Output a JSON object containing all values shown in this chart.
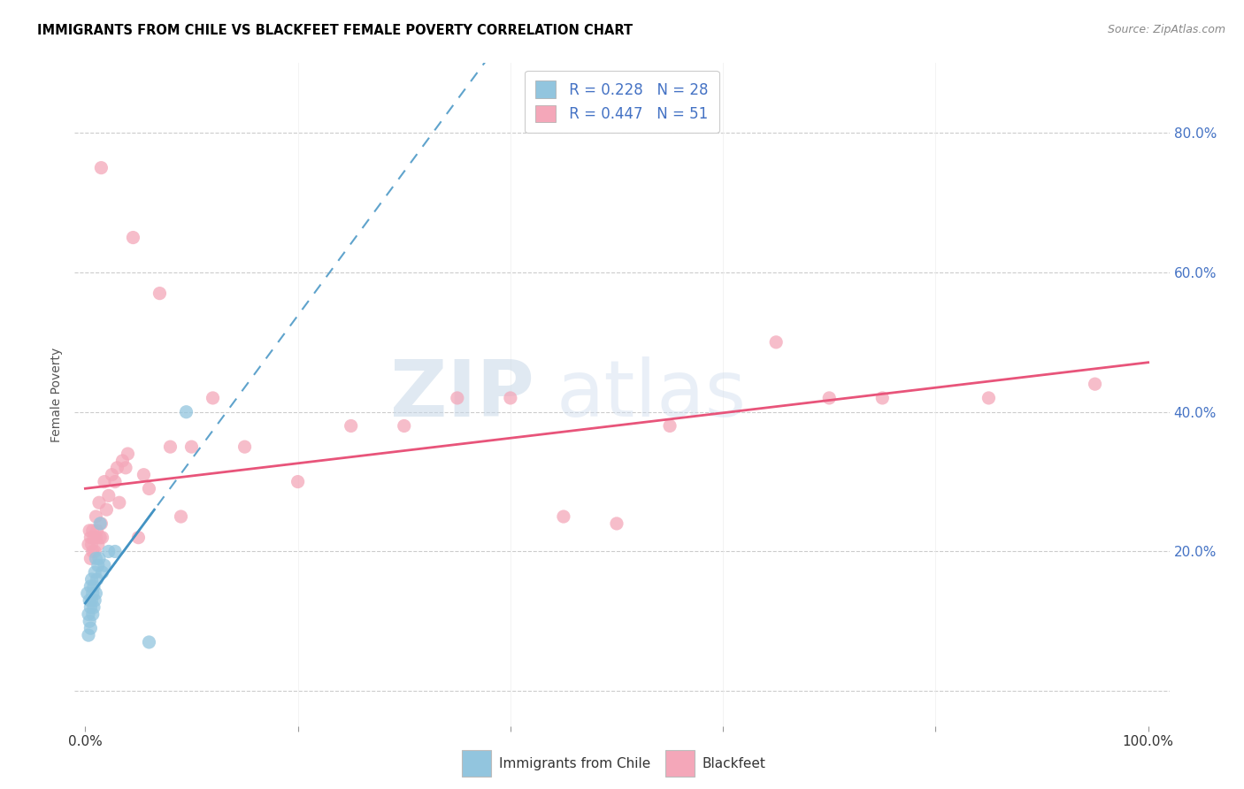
{
  "title": "IMMIGRANTS FROM CHILE VS BLACKFEET FEMALE POVERTY CORRELATION CHART",
  "source": "Source: ZipAtlas.com",
  "ylabel": "Female Poverty",
  "color_chile": "#92C5DE",
  "color_blackfeet": "#F4A7B9",
  "color_chile_line": "#4393C3",
  "color_blackfeet_line": "#E8547A",
  "watermark_zip": "ZIP",
  "watermark_atlas": "atlas",
  "chile_x": [
    0.002,
    0.003,
    0.003,
    0.004,
    0.004,
    0.005,
    0.005,
    0.005,
    0.006,
    0.006,
    0.007,
    0.007,
    0.008,
    0.008,
    0.009,
    0.009,
    0.01,
    0.01,
    0.011,
    0.012,
    0.013,
    0.014,
    0.016,
    0.018,
    0.022,
    0.028,
    0.06,
    0.095
  ],
  "chile_y": [
    0.14,
    0.11,
    0.08,
    0.13,
    0.1,
    0.15,
    0.12,
    0.09,
    0.16,
    0.13,
    0.14,
    0.11,
    0.15,
    0.12,
    0.17,
    0.13,
    0.14,
    0.19,
    0.16,
    0.18,
    0.19,
    0.24,
    0.17,
    0.18,
    0.2,
    0.2,
    0.07,
    0.4
  ],
  "blackfeet_x": [
    0.003,
    0.004,
    0.005,
    0.005,
    0.006,
    0.007,
    0.007,
    0.008,
    0.009,
    0.01,
    0.01,
    0.011,
    0.012,
    0.013,
    0.014,
    0.015,
    0.015,
    0.016,
    0.018,
    0.02,
    0.022,
    0.025,
    0.028,
    0.03,
    0.032,
    0.035,
    0.038,
    0.04,
    0.045,
    0.05,
    0.055,
    0.06,
    0.07,
    0.08,
    0.09,
    0.1,
    0.12,
    0.15,
    0.2,
    0.25,
    0.3,
    0.35,
    0.4,
    0.45,
    0.5,
    0.55,
    0.65,
    0.7,
    0.75,
    0.85,
    0.95
  ],
  "blackfeet_y": [
    0.21,
    0.23,
    0.22,
    0.19,
    0.21,
    0.2,
    0.23,
    0.22,
    0.2,
    0.25,
    0.22,
    0.23,
    0.21,
    0.27,
    0.22,
    0.24,
    0.75,
    0.22,
    0.3,
    0.26,
    0.28,
    0.31,
    0.3,
    0.32,
    0.27,
    0.33,
    0.32,
    0.34,
    0.65,
    0.22,
    0.31,
    0.29,
    0.57,
    0.35,
    0.25,
    0.35,
    0.42,
    0.35,
    0.3,
    0.38,
    0.38,
    0.42,
    0.42,
    0.25,
    0.24,
    0.38,
    0.5,
    0.42,
    0.42,
    0.42,
    0.44
  ],
  "xlim": [
    -0.01,
    1.02
  ],
  "ylim": [
    -0.05,
    0.9
  ],
  "ytick_vals": [
    0.0,
    0.2,
    0.4,
    0.6,
    0.8
  ],
  "xtick_vals": [
    0.0,
    0.2,
    0.4,
    0.6,
    0.8,
    1.0
  ]
}
